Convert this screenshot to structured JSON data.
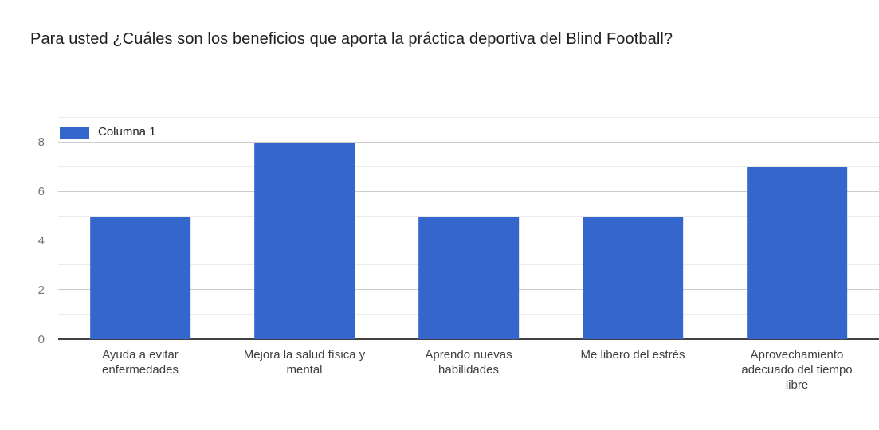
{
  "chart_data": {
    "type": "bar",
    "title": "Para usted ¿Cuáles son los beneficios que aporta la práctica deportiva del Blind Football?",
    "categories": [
      "Ayuda a evitar enfermedades",
      "Mejora la salud física y mental",
      "Aprendo nuevas habilidades",
      "Me libero del estrés",
      "Aprovechamiento adecuado del tiempo libre"
    ],
    "category_lines": [
      [
        "Ayuda a evitar",
        "enfermedades"
      ],
      [
        "Mejora la salud física y",
        "mental"
      ],
      [
        "Aprendo nuevas",
        "habilidades"
      ],
      [
        "Me libero del estrés"
      ],
      [
        "Aprovechamiento",
        "adecuado del tiempo",
        "libre"
      ]
    ],
    "series": [
      {
        "name": "Columna 1",
        "values": [
          5,
          8,
          5,
          5,
          7
        ]
      }
    ],
    "xlabel": "",
    "ylabel": "",
    "ylim": [
      0,
      8
    ],
    "y_plot_max": 9,
    "yticks": [
      0,
      2,
      4,
      6,
      8
    ],
    "grid": "horizontal, major at even values and lighter minor at odd values",
    "legend_position": "top-left inside plot",
    "colors": {
      "bar": "#3566cc",
      "major_grid": "#cccccc",
      "minor_grid": "#ebebeb",
      "baseline": "#424242",
      "title_text": "#212121",
      "axis_text": "#757575",
      "category_text": "#3c4043",
      "legend_text": "#212121",
      "background": "#ffffff"
    }
  }
}
